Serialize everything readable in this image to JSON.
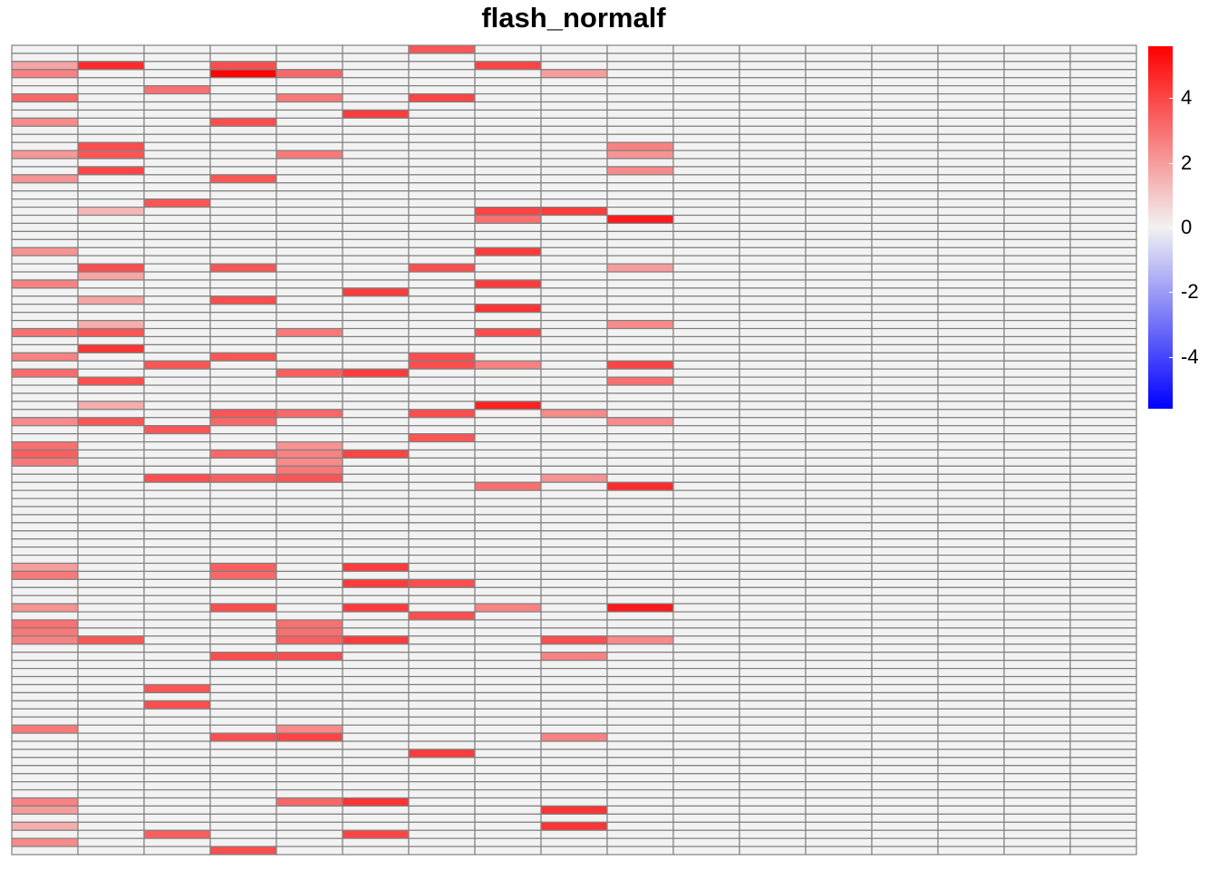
{
  "title": "flash_normalf",
  "chart_data": {
    "type": "heatmap",
    "title": "flash_normalf",
    "n_columns": 17,
    "n_rows": 100,
    "color_scale": {
      "min": -5.6,
      "max": 5.6,
      "low_color": "#0000FF",
      "mid_color": "#F2F2F2",
      "high_color": "#FF0000",
      "ticks": [
        4,
        2,
        0,
        -2,
        -4
      ],
      "tick_labels": [
        "4",
        "2",
        "0",
        "-2",
        "-4"
      ]
    },
    "cell_border_color": "#808080",
    "background_value": 0,
    "nonzero_cells": [
      {
        "col": 1,
        "row": 3,
        "value": 1.8
      },
      {
        "col": 1,
        "row": 4,
        "value": 2.6
      },
      {
        "col": 1,
        "row": 7,
        "value": 3.2
      },
      {
        "col": 1,
        "row": 10,
        "value": 2.4
      },
      {
        "col": 1,
        "row": 14,
        "value": 2.1
      },
      {
        "col": 1,
        "row": 17,
        "value": 2.2
      },
      {
        "col": 1,
        "row": 26,
        "value": 2.2
      },
      {
        "col": 1,
        "row": 30,
        "value": 2.6
      },
      {
        "col": 1,
        "row": 36,
        "value": 3.0
      },
      {
        "col": 1,
        "row": 39,
        "value": 2.6
      },
      {
        "col": 1,
        "row": 41,
        "value": 3.1
      },
      {
        "col": 1,
        "row": 47,
        "value": 2.4
      },
      {
        "col": 1,
        "row": 50,
        "value": 3.0
      },
      {
        "col": 1,
        "row": 51,
        "value": 3.4
      },
      {
        "col": 1,
        "row": 52,
        "value": 2.8
      },
      {
        "col": 1,
        "row": 65,
        "value": 2.0
      },
      {
        "col": 1,
        "row": 66,
        "value": 2.8
      },
      {
        "col": 1,
        "row": 70,
        "value": 2.2
      },
      {
        "col": 1,
        "row": 72,
        "value": 3.0
      },
      {
        "col": 1,
        "row": 73,
        "value": 2.8
      },
      {
        "col": 1,
        "row": 74,
        "value": 2.6
      },
      {
        "col": 1,
        "row": 85,
        "value": 2.8
      },
      {
        "col": 1,
        "row": 94,
        "value": 2.6
      },
      {
        "col": 1,
        "row": 95,
        "value": 2.0
      },
      {
        "col": 1,
        "row": 97,
        "value": 1.6
      },
      {
        "col": 1,
        "row": 99,
        "value": 2.4
      },
      {
        "col": 2,
        "row": 3,
        "value": 4.6
      },
      {
        "col": 2,
        "row": 13,
        "value": 3.8
      },
      {
        "col": 2,
        "row": 14,
        "value": 3.6
      },
      {
        "col": 2,
        "row": 16,
        "value": 4.0
      },
      {
        "col": 2,
        "row": 21,
        "value": 1.4
      },
      {
        "col": 2,
        "row": 28,
        "value": 3.8
      },
      {
        "col": 2,
        "row": 29,
        "value": 1.8
      },
      {
        "col": 2,
        "row": 32,
        "value": 1.8
      },
      {
        "col": 2,
        "row": 35,
        "value": 1.6
      },
      {
        "col": 2,
        "row": 36,
        "value": 3.6
      },
      {
        "col": 2,
        "row": 38,
        "value": 4.4
      },
      {
        "col": 2,
        "row": 42,
        "value": 3.8
      },
      {
        "col": 2,
        "row": 45,
        "value": 1.6
      },
      {
        "col": 2,
        "row": 47,
        "value": 3.6
      },
      {
        "col": 2,
        "row": 74,
        "value": 3.6
      },
      {
        "col": 3,
        "row": 6,
        "value": 3.0
      },
      {
        "col": 3,
        "row": 20,
        "value": 3.6
      },
      {
        "col": 3,
        "row": 40,
        "value": 3.6
      },
      {
        "col": 3,
        "row": 48,
        "value": 3.6
      },
      {
        "col": 3,
        "row": 54,
        "value": 3.8
      },
      {
        "col": 3,
        "row": 80,
        "value": 3.6
      },
      {
        "col": 3,
        "row": 82,
        "value": 3.8
      },
      {
        "col": 3,
        "row": 98,
        "value": 3.4
      },
      {
        "col": 4,
        "row": 3,
        "value": 3.8
      },
      {
        "col": 4,
        "row": 4,
        "value": 5.5
      },
      {
        "col": 4,
        "row": 10,
        "value": 3.8
      },
      {
        "col": 4,
        "row": 17,
        "value": 3.6
      },
      {
        "col": 4,
        "row": 28,
        "value": 3.6
      },
      {
        "col": 4,
        "row": 32,
        "value": 3.8
      },
      {
        "col": 4,
        "row": 39,
        "value": 3.6
      },
      {
        "col": 4,
        "row": 46,
        "value": 3.6
      },
      {
        "col": 4,
        "row": 47,
        "value": 3.2
      },
      {
        "col": 4,
        "row": 51,
        "value": 3.2
      },
      {
        "col": 4,
        "row": 54,
        "value": 3.4
      },
      {
        "col": 4,
        "row": 65,
        "value": 3.4
      },
      {
        "col": 4,
        "row": 66,
        "value": 3.2
      },
      {
        "col": 4,
        "row": 70,
        "value": 3.8
      },
      {
        "col": 4,
        "row": 76,
        "value": 3.8
      },
      {
        "col": 4,
        "row": 86,
        "value": 3.8
      },
      {
        "col": 4,
        "row": 100,
        "value": 3.8
      },
      {
        "col": 5,
        "row": 4,
        "value": 3.2
      },
      {
        "col": 5,
        "row": 7,
        "value": 2.8
      },
      {
        "col": 5,
        "row": 14,
        "value": 2.8
      },
      {
        "col": 5,
        "row": 36,
        "value": 2.8
      },
      {
        "col": 5,
        "row": 41,
        "value": 3.4
      },
      {
        "col": 5,
        "row": 46,
        "value": 3.2
      },
      {
        "col": 5,
        "row": 50,
        "value": 2.2
      },
      {
        "col": 5,
        "row": 51,
        "value": 2.6
      },
      {
        "col": 5,
        "row": 52,
        "value": 2.4
      },
      {
        "col": 5,
        "row": 53,
        "value": 2.8
      },
      {
        "col": 5,
        "row": 54,
        "value": 3.6
      },
      {
        "col": 5,
        "row": 72,
        "value": 3.0
      },
      {
        "col": 5,
        "row": 73,
        "value": 3.0
      },
      {
        "col": 5,
        "row": 74,
        "value": 3.4
      },
      {
        "col": 5,
        "row": 76,
        "value": 3.8
      },
      {
        "col": 5,
        "row": 85,
        "value": 2.4
      },
      {
        "col": 5,
        "row": 86,
        "value": 4.0
      },
      {
        "col": 5,
        "row": 94,
        "value": 3.2
      },
      {
        "col": 6,
        "row": 9,
        "value": 4.2
      },
      {
        "col": 6,
        "row": 31,
        "value": 4.2
      },
      {
        "col": 6,
        "row": 41,
        "value": 4.2
      },
      {
        "col": 6,
        "row": 51,
        "value": 4.0
      },
      {
        "col": 6,
        "row": 65,
        "value": 4.2
      },
      {
        "col": 6,
        "row": 67,
        "value": 4.2
      },
      {
        "col": 6,
        "row": 70,
        "value": 4.2
      },
      {
        "col": 6,
        "row": 74,
        "value": 4.2
      },
      {
        "col": 6,
        "row": 94,
        "value": 4.4
      },
      {
        "col": 6,
        "row": 98,
        "value": 4.0
      },
      {
        "col": 7,
        "row": 1,
        "value": 3.6
      },
      {
        "col": 7,
        "row": 7,
        "value": 4.0
      },
      {
        "col": 7,
        "row": 28,
        "value": 3.8
      },
      {
        "col": 7,
        "row": 39,
        "value": 3.8
      },
      {
        "col": 7,
        "row": 40,
        "value": 3.8
      },
      {
        "col": 7,
        "row": 46,
        "value": 3.8
      },
      {
        "col": 7,
        "row": 49,
        "value": 3.6
      },
      {
        "col": 7,
        "row": 67,
        "value": 3.8
      },
      {
        "col": 7,
        "row": 71,
        "value": 3.8
      },
      {
        "col": 7,
        "row": 88,
        "value": 4.2
      },
      {
        "col": 8,
        "row": 3,
        "value": 4.0
      },
      {
        "col": 8,
        "row": 21,
        "value": 4.0
      },
      {
        "col": 8,
        "row": 22,
        "value": 3.0
      },
      {
        "col": 8,
        "row": 26,
        "value": 4.2
      },
      {
        "col": 8,
        "row": 30,
        "value": 4.2
      },
      {
        "col": 8,
        "row": 33,
        "value": 4.4
      },
      {
        "col": 8,
        "row": 36,
        "value": 3.8
      },
      {
        "col": 8,
        "row": 40,
        "value": 2.6
      },
      {
        "col": 8,
        "row": 45,
        "value": 4.8
      },
      {
        "col": 8,
        "row": 55,
        "value": 3.0
      },
      {
        "col": 8,
        "row": 70,
        "value": 2.6
      },
      {
        "col": 9,
        "row": 4,
        "value": 2.0
      },
      {
        "col": 9,
        "row": 21,
        "value": 4.2
      },
      {
        "col": 9,
        "row": 46,
        "value": 2.4
      },
      {
        "col": 9,
        "row": 54,
        "value": 2.2
      },
      {
        "col": 9,
        "row": 74,
        "value": 3.8
      },
      {
        "col": 9,
        "row": 76,
        "value": 2.6
      },
      {
        "col": 9,
        "row": 86,
        "value": 2.6
      },
      {
        "col": 9,
        "row": 95,
        "value": 4.4
      },
      {
        "col": 9,
        "row": 97,
        "value": 4.4
      },
      {
        "col": 10,
        "row": 13,
        "value": 2.6
      },
      {
        "col": 10,
        "row": 14,
        "value": 2.2
      },
      {
        "col": 10,
        "row": 16,
        "value": 2.4
      },
      {
        "col": 10,
        "row": 22,
        "value": 5.0
      },
      {
        "col": 10,
        "row": 28,
        "value": 2.0
      },
      {
        "col": 10,
        "row": 35,
        "value": 2.4
      },
      {
        "col": 10,
        "row": 40,
        "value": 4.0
      },
      {
        "col": 10,
        "row": 42,
        "value": 3.0
      },
      {
        "col": 10,
        "row": 47,
        "value": 2.4
      },
      {
        "col": 10,
        "row": 55,
        "value": 4.6
      },
      {
        "col": 10,
        "row": 70,
        "value": 5.0
      },
      {
        "col": 10,
        "row": 74,
        "value": 2.4
      }
    ]
  }
}
